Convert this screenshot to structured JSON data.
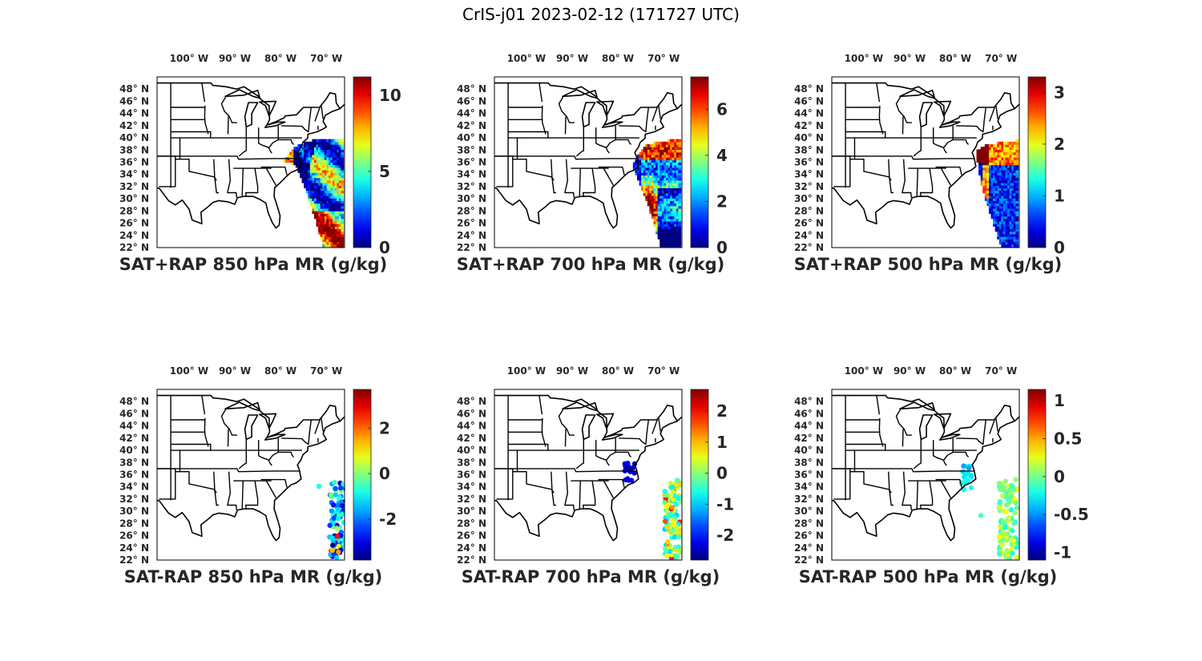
{
  "figure": {
    "title": "CrIS-j01 2023-02-12 (171727 UTC)"
  },
  "map_axes": {
    "lon_ticks": [
      "100° W",
      "90° W",
      "80° W",
      "70° W"
    ],
    "lon_values": [
      -100,
      -90,
      -80,
      -70
    ],
    "lat_ticks": [
      "48° N",
      "46° N",
      "44° N",
      "42° N",
      "40° N",
      "38° N",
      "36° N",
      "34° N",
      "32° N",
      "30° N",
      "28° N",
      "26° N",
      "24° N",
      "22° N"
    ],
    "lat_values": [
      48,
      46,
      44,
      42,
      40,
      38,
      36,
      34,
      32,
      30,
      28,
      26,
      24,
      22
    ],
    "lon_range": [
      -107,
      -66
    ],
    "lat_range": [
      22,
      50
    ],
    "colormap": "jet",
    "colors": {
      "low": "#00008f",
      "mid": "#7fff7f",
      "high": "#800000",
      "outline": "#000000"
    }
  },
  "panels": [
    {
      "id": "sum-850",
      "caption": "SAT+RAP 850 hPa MR (g/kg)",
      "kind": "swath",
      "colorbar": {
        "ticks": [
          "10",
          "5",
          "0"
        ],
        "tick_values": [
          10,
          5,
          0
        ],
        "range": [
          0,
          11.2
        ]
      }
    },
    {
      "id": "sum-700",
      "caption": "SAT+RAP 700 hPa MR (g/kg)",
      "kind": "swath",
      "colorbar": {
        "ticks": [
          "6",
          "4",
          "2",
          "0"
        ],
        "tick_values": [
          6,
          4,
          2,
          0
        ],
        "range": [
          0,
          7.4
        ]
      }
    },
    {
      "id": "sum-500",
      "caption": "SAT+RAP 500 hPa MR (g/kg)",
      "kind": "swath",
      "colorbar": {
        "ticks": [
          "3",
          "2",
          "1",
          "0"
        ],
        "tick_values": [
          3,
          2,
          1,
          0
        ],
        "range": [
          0,
          3.3
        ]
      }
    },
    {
      "id": "diff-850",
      "caption": "SAT-RAP 850 hPa MR (g/kg)",
      "kind": "dots",
      "colorbar": {
        "ticks": [
          "2",
          "0",
          "-2"
        ],
        "tick_values": [
          2,
          0,
          -2
        ],
        "range": [
          -3.8,
          3.7
        ]
      }
    },
    {
      "id": "diff-700",
      "caption": "SAT-RAP 700 hPa MR (g/kg)",
      "kind": "dots",
      "colorbar": {
        "ticks": [
          "2",
          "1",
          "0",
          "-1",
          "-2"
        ],
        "tick_values": [
          2,
          1,
          0,
          -1,
          -2
        ],
        "range": [
          -2.8,
          2.7
        ]
      }
    },
    {
      "id": "diff-500",
      "caption": "SAT-RAP 500 hPa MR (g/kg)",
      "kind": "dots",
      "colorbar": {
        "ticks": [
          "1",
          "0.5",
          "0",
          "-0.5",
          "-1"
        ],
        "tick_values": [
          1,
          0.5,
          0,
          -0.5,
          -1
        ],
        "range": [
          -1.1,
          1.15
        ]
      }
    }
  ]
}
